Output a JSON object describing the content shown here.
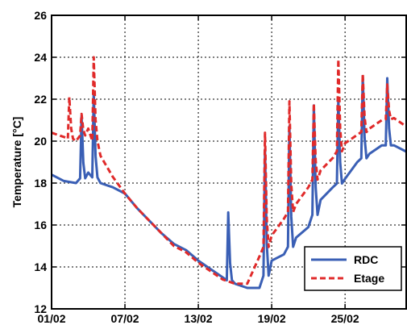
{
  "chart_data": {
    "type": "line",
    "title": "",
    "xlabel": "",
    "ylabel": "Temperature [°C]",
    "xlim": [
      "2013-02-01",
      "2013-03-02"
    ],
    "ylim": [
      12,
      26
    ],
    "x_ticks": [
      {
        "date": "2013-02-01",
        "label": "01/02"
      },
      {
        "date": "2013-02-07",
        "label": "07/02"
      },
      {
        "date": "2013-02-13",
        "label": "13/02"
      },
      {
        "date": "2013-02-19",
        "label": "19/02"
      },
      {
        "date": "2013-02-25",
        "label": "25/02"
      }
    ],
    "y_ticks": [
      {
        "value": 12,
        "label": "12"
      },
      {
        "value": 14,
        "label": "14"
      },
      {
        "value": 16,
        "label": "16"
      },
      {
        "value": 18,
        "label": "18"
      },
      {
        "value": 20,
        "label": "20"
      },
      {
        "value": 22,
        "label": "22"
      },
      {
        "value": 24,
        "label": "24"
      },
      {
        "value": 26,
        "label": "26"
      }
    ],
    "grid": true,
    "legend_position": "bottom-right",
    "series": [
      {
        "name": "RDC",
        "color": "#3a5fb5",
        "style": "solid",
        "x": [
          "2013-02-01",
          "2013-02-02",
          "2013-02-03",
          "2013-02-04",
          "2013-02-05",
          "2013-02-06",
          "2013-02-07",
          "2013-02-08",
          "2013-02-09",
          "2013-02-10",
          "2013-02-11",
          "2013-02-12",
          "2013-02-13",
          "2013-02-14",
          "2013-02-15",
          "2013-02-16",
          "2013-02-17",
          "2013-02-18",
          "2013-02-19",
          "2013-02-20",
          "2013-02-21",
          "2013-02-22",
          "2013-02-23",
          "2013-02-24",
          "2013-02-25",
          "2013-02-26",
          "2013-02-27",
          "2013-02-28",
          "2013-03-01",
          "2013-03-02"
        ],
        "y": [
          18.4,
          18.1,
          18.0,
          18.5,
          18.0,
          17.8,
          17.5,
          16.8,
          16.2,
          15.6,
          15.1,
          14.8,
          14.3,
          13.9,
          13.5,
          13.2,
          13.0,
          13.0,
          14.3,
          14.6,
          15.4,
          15.9,
          17.2,
          17.8,
          18.2,
          19.0,
          19.4,
          19.8,
          19.8,
          19.5
        ],
        "peaks": [
          {
            "date": "2013-02-03",
            "value": 21.2
          },
          {
            "date": "2013-02-04",
            "value": 22.3
          },
          {
            "date": "2013-02-15",
            "value": 16.6
          },
          {
            "date": "2013-02-18",
            "value": 19.6
          },
          {
            "date": "2013-02-20",
            "value": 20.7
          },
          {
            "date": "2013-02-22",
            "value": 21.7
          },
          {
            "date": "2013-02-24",
            "value": 22.0
          },
          {
            "date": "2013-02-26",
            "value": 23.1
          },
          {
            "date": "2013-02-28",
            "value": 23.0
          }
        ]
      },
      {
        "name": "Etage",
        "color": "#e02a2a",
        "style": "dashed",
        "x": [
          "2013-02-01",
          "2013-02-02",
          "2013-02-03",
          "2013-02-04",
          "2013-02-05",
          "2013-02-06",
          "2013-02-07",
          "2013-02-08",
          "2013-02-09",
          "2013-02-10",
          "2013-02-11",
          "2013-02-12",
          "2013-02-13",
          "2013-02-14",
          "2013-02-15",
          "2013-02-16",
          "2013-02-17",
          "2013-02-18",
          "2013-02-19",
          "2013-02-20",
          "2013-02-21",
          "2013-02-22",
          "2013-02-23",
          "2013-02-24",
          "2013-02-25",
          "2013-02-26",
          "2013-02-27",
          "2013-02-28",
          "2013-03-01",
          "2013-03-02"
        ],
        "y": [
          20.4,
          20.2,
          20.0,
          20.6,
          19.3,
          18.3,
          17.5,
          16.8,
          16.2,
          15.6,
          15.0,
          14.7,
          14.2,
          13.8,
          13.4,
          13.2,
          13.2,
          14.5,
          15.5,
          16.3,
          17.0,
          17.8,
          18.6,
          19.2,
          19.9,
          20.3,
          20.6,
          21.0,
          21.1,
          20.7
        ],
        "peaks": [
          {
            "date": "2013-02-02",
            "value": 22.1
          },
          {
            "date": "2013-02-03",
            "value": 21.3
          },
          {
            "date": "2013-02-04",
            "value": 24.0
          },
          {
            "date": "2013-02-18",
            "value": 20.4
          },
          {
            "date": "2013-02-20",
            "value": 21.9
          },
          {
            "date": "2013-02-22",
            "value": 21.8
          },
          {
            "date": "2013-02-24",
            "value": 23.9
          },
          {
            "date": "2013-02-26",
            "value": 23.2
          },
          {
            "date": "2013-02-28",
            "value": 22.7
          }
        ]
      }
    ]
  }
}
